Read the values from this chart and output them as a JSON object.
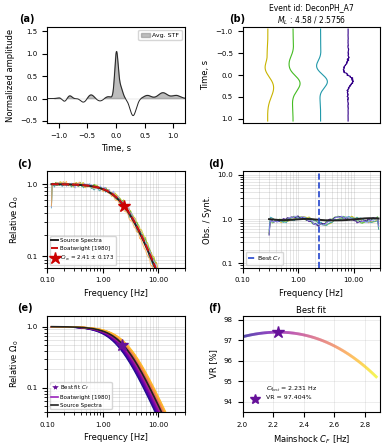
{
  "title_b": "Event id: DeconPH_A7\n$M_L$ : 4.58 / 2.5756",
  "panel_labels": [
    "(a)",
    "(b)",
    "(c)",
    "(d)",
    "(e)",
    "(f)"
  ],
  "panel_a": {
    "xlabel": "Time, s",
    "ylabel": "Normalized amplitude",
    "legend": "Avg. STF",
    "xlim": [
      -1.2,
      1.2
    ],
    "ylim": [
      -0.55,
      1.6
    ],
    "yticks": [
      -0.5,
      0.0,
      0.5,
      1.0,
      1.5
    ],
    "xticks": [
      -1.0,
      -0.5,
      0.0,
      0.5,
      1.0
    ]
  },
  "panel_b": {
    "ylabel": "Time, s",
    "yticks": [
      -1.0,
      -0.5,
      0.0,
      0.5,
      1.0
    ],
    "ylim": [
      -1.1,
      1.1
    ]
  },
  "panel_c": {
    "xlabel": "Frequency [Hz]",
    "ylabel": "Relative $\\Omega_0$",
    "legend1": "Source Spectra",
    "legend2": "Boatwright [1980]",
    "legend3": "$C_{f_{co}}$ = 2.41 ± 0.173",
    "xlim": [
      0.1,
      30
    ],
    "ylim": [
      0.07,
      1.5
    ],
    "fc_best": 2.41
  },
  "panel_d": {
    "xlabel": "Frequency [Hz]",
    "ylabel": "Obs. / Synt.",
    "legend": "Best $C_f$",
    "xlim": [
      0.1,
      30
    ],
    "ylim": [
      0.08,
      12
    ],
    "best_cf": 2.41
  },
  "panel_e": {
    "xlabel": "Frequency [Hz]",
    "ylabel": "Relative $\\Omega_0$",
    "legend1": "Best fit $C_f$",
    "legend2": "Boatwright [1980]",
    "legend3": "Source Spectra",
    "xlim": [
      0.1,
      30
    ],
    "ylim": [
      0.04,
      1.5
    ],
    "fc_best": 2.231
  },
  "panel_f": {
    "title": "Best fit",
    "xlabel": "Mainshock $C_F$ [Hz]",
    "ylabel": "VR [%]",
    "legend_text": "$C_{f_{best}}$ = 2.231 Hz\nVR = 97.404%",
    "xlim": [
      2.0,
      2.9
    ],
    "ylim": [
      93.5,
      98.2
    ],
    "yticks": [
      94,
      95,
      96,
      97,
      98
    ],
    "xticks": [
      2.0,
      2.2,
      2.4,
      2.6,
      2.8
    ],
    "best_x": 2.231,
    "best_y": 97.404
  },
  "colors": {
    "yellow": "#c8b400",
    "light_green": "#44bb22",
    "teal": "#2299aa",
    "dark_purple": "#330088",
    "dark_gray": "#222222",
    "red_dashed": "#cc1111",
    "blue_dashed": "#2244cc",
    "star_red": "#cc0000",
    "star_purple": "#661199"
  }
}
